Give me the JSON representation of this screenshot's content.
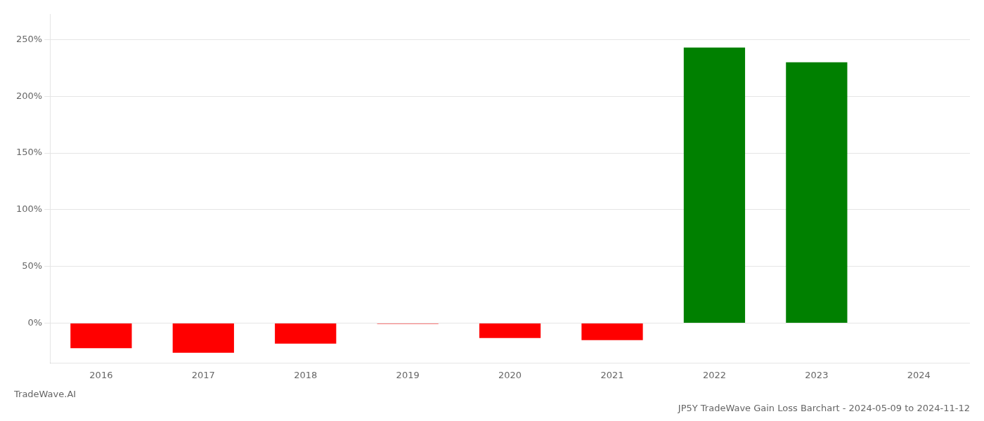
{
  "chart_data": {
    "type": "bar",
    "title": "JP5Y TradeWave Gain Loss Barchart - 2024-05-09 to 2024-11-12",
    "annotations": [
      {
        "text": "TradeWave.AI"
      }
    ],
    "categories": [
      "2016",
      "2017",
      "2018",
      "2019",
      "2020",
      "2021",
      "2022",
      "2023",
      "2024"
    ],
    "values": [
      -0.22,
      -0.26,
      -0.18,
      -0.005,
      -0.13,
      -0.15,
      2.43,
      2.3,
      null
    ],
    "colors": [
      "#ff0000",
      "#ff0000",
      "#ff0000",
      "#ff0000",
      "#ff0000",
      "#ff0000",
      "#008000",
      "#008000",
      null
    ],
    "ylim": [
      -0.35,
      2.72
    ],
    "yticks": [
      {
        "value": 0.0,
        "label": "0%"
      },
      {
        "value": 0.5,
        "label": "50%"
      },
      {
        "value": 1.0,
        "label": "100%"
      },
      {
        "value": 1.5,
        "label": "150%"
      },
      {
        "value": 2.0,
        "label": "200%"
      },
      {
        "value": 2.5,
        "label": "250%"
      }
    ],
    "grid": true
  }
}
